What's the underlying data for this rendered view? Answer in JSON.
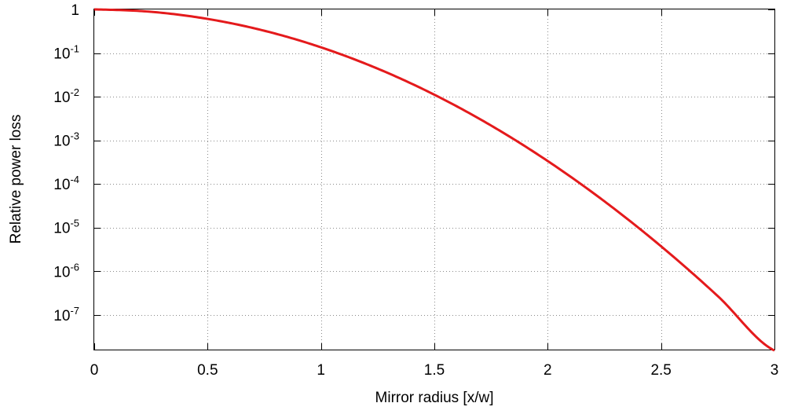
{
  "chart_data": {
    "type": "line",
    "xlabel": "Mirror radius [x/w]",
    "ylabel": "Relative power loss",
    "xlim": [
      0,
      3
    ],
    "ylim": [
      1.6e-08,
      1
    ],
    "yscale": "log",
    "grid": true,
    "x_ticks": [
      {
        "value": 0,
        "label": "0"
      },
      {
        "value": 0.5,
        "label": "0.5"
      },
      {
        "value": 1,
        "label": "1"
      },
      {
        "value": 1.5,
        "label": "1.5"
      },
      {
        "value": 2,
        "label": "2"
      },
      {
        "value": 2.5,
        "label": "2.5"
      },
      {
        "value": 3,
        "label": "3"
      }
    ],
    "y_ticks": [
      {
        "value": 1,
        "base": "1",
        "exp": ""
      },
      {
        "value": 0.1,
        "base": "10",
        "exp": "-1"
      },
      {
        "value": 0.01,
        "base": "10",
        "exp": "-2"
      },
      {
        "value": 0.001,
        "base": "10",
        "exp": "-3"
      },
      {
        "value": 0.0001,
        "base": "10",
        "exp": "-4"
      },
      {
        "value": 1e-05,
        "base": "10",
        "exp": "-5"
      },
      {
        "value": 1e-06,
        "base": "10",
        "exp": "-6"
      },
      {
        "value": 1e-07,
        "base": "10",
        "exp": "-7"
      }
    ],
    "series": [
      {
        "color": "#e41a1c",
        "x": [
          0,
          0.25,
          0.5,
          0.75,
          1.0,
          1.25,
          1.5,
          1.75,
          2.0,
          2.25,
          2.5,
          2.75,
          3.0
        ],
        "y": [
          1,
          0.8825,
          0.6065,
          0.3247,
          0.1353,
          0.04394,
          0.01111,
          0.002187,
          0.0003355,
          4.01e-05,
          3.727e-06,
          2.698e-07,
          1.523e-08
        ]
      }
    ]
  }
}
